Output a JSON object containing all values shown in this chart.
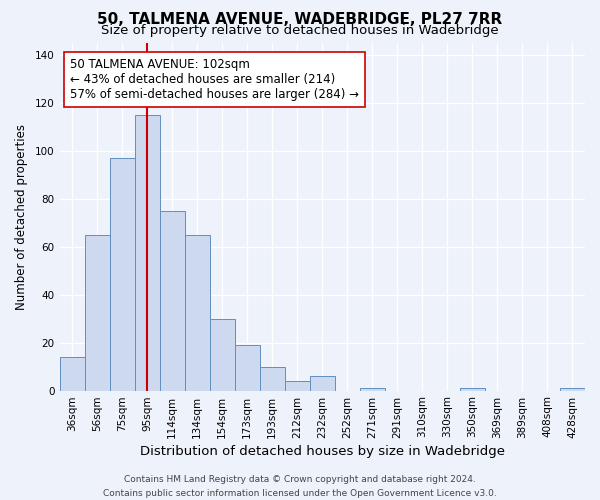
{
  "title": "50, TALMENA AVENUE, WADEBRIDGE, PL27 7RR",
  "subtitle": "Size of property relative to detached houses in Wadebridge",
  "xlabel": "Distribution of detached houses by size in Wadebridge",
  "ylabel": "Number of detached properties",
  "bar_labels": [
    "36sqm",
    "56sqm",
    "75sqm",
    "95sqm",
    "114sqm",
    "134sqm",
    "154sqm",
    "173sqm",
    "193sqm",
    "212sqm",
    "232sqm",
    "252sqm",
    "271sqm",
    "291sqm",
    "310sqm",
    "330sqm",
    "350sqm",
    "369sqm",
    "389sqm",
    "408sqm",
    "428sqm"
  ],
  "bar_values": [
    14,
    65,
    97,
    115,
    75,
    65,
    30,
    19,
    10,
    4,
    6,
    0,
    1,
    0,
    0,
    0,
    1,
    0,
    0,
    0,
    1
  ],
  "bar_color": "#ccd9ee",
  "bar_edge_color": "#6090c0",
  "vline_x": 3.0,
  "vline_color": "#cc0000",
  "ylim": [
    0,
    145
  ],
  "yticks": [
    0,
    20,
    40,
    60,
    80,
    100,
    120,
    140
  ],
  "annotation_box_text": "50 TALMENA AVENUE: 102sqm\n← 43% of detached houses are smaller (214)\n57% of semi-detached houses are larger (284) →",
  "footer_line1": "Contains HM Land Registry data © Crown copyright and database right 2024.",
  "footer_line2": "Contains public sector information licensed under the Open Government Licence v3.0.",
  "background_color": "#eef2fa",
  "plot_bg_color": "#eef2fa",
  "title_fontsize": 11,
  "subtitle_fontsize": 9.5,
  "xlabel_fontsize": 9.5,
  "ylabel_fontsize": 8.5,
  "tick_fontsize": 7.5,
  "annotation_fontsize": 8.5,
  "footer_fontsize": 6.5
}
